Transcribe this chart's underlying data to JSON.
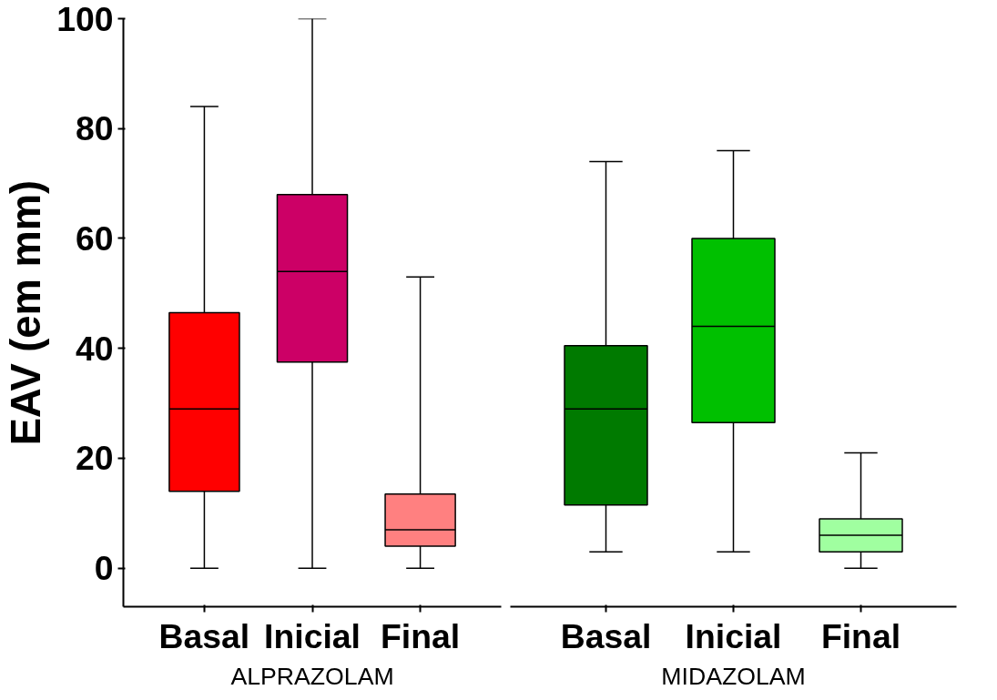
{
  "chart_data": [
    {
      "type": "box",
      "ylabel": "EAV (em mm)",
      "xlabel": "ALPRAZOLAM",
      "categories": [
        "Basal",
        "Inicial",
        "Final"
      ],
      "colors": [
        "#ff0000",
        "#cc0066",
        "#ff8080"
      ],
      "boxes": [
        {
          "low": 0,
          "q1": 14,
          "median": 29,
          "q3": 46.5,
          "high": 84
        },
        {
          "low": 0,
          "q1": 37.5,
          "median": 54,
          "q3": 68,
          "high": 100
        },
        {
          "low": 0,
          "q1": 4,
          "median": 7,
          "q3": 13.5,
          "high": 53
        }
      ],
      "ylim": [
        -7,
        100
      ],
      "yticks": [
        0,
        20,
        40,
        60,
        80,
        100
      ],
      "grid": false
    },
    {
      "type": "box",
      "xlabel": "MIDAZOLAM",
      "categories": [
        "Basal",
        "Inicial",
        "Final"
      ],
      "colors": [
        "#007a00",
        "#00c000",
        "#a0ffa0"
      ],
      "boxes": [
        {
          "low": 3,
          "q1": 11.5,
          "median": 29,
          "q3": 40.5,
          "high": 74
        },
        {
          "low": 3,
          "q1": 26.5,
          "median": 44,
          "q3": 60,
          "high": 76
        },
        {
          "low": 0,
          "q1": 3,
          "median": 6,
          "q3": 9,
          "high": 21
        }
      ],
      "ylim": [
        -7,
        100
      ],
      "yticks": [
        0,
        20,
        40,
        60,
        80,
        100
      ],
      "grid": false,
      "tick_labels": "x"
    }
  ]
}
